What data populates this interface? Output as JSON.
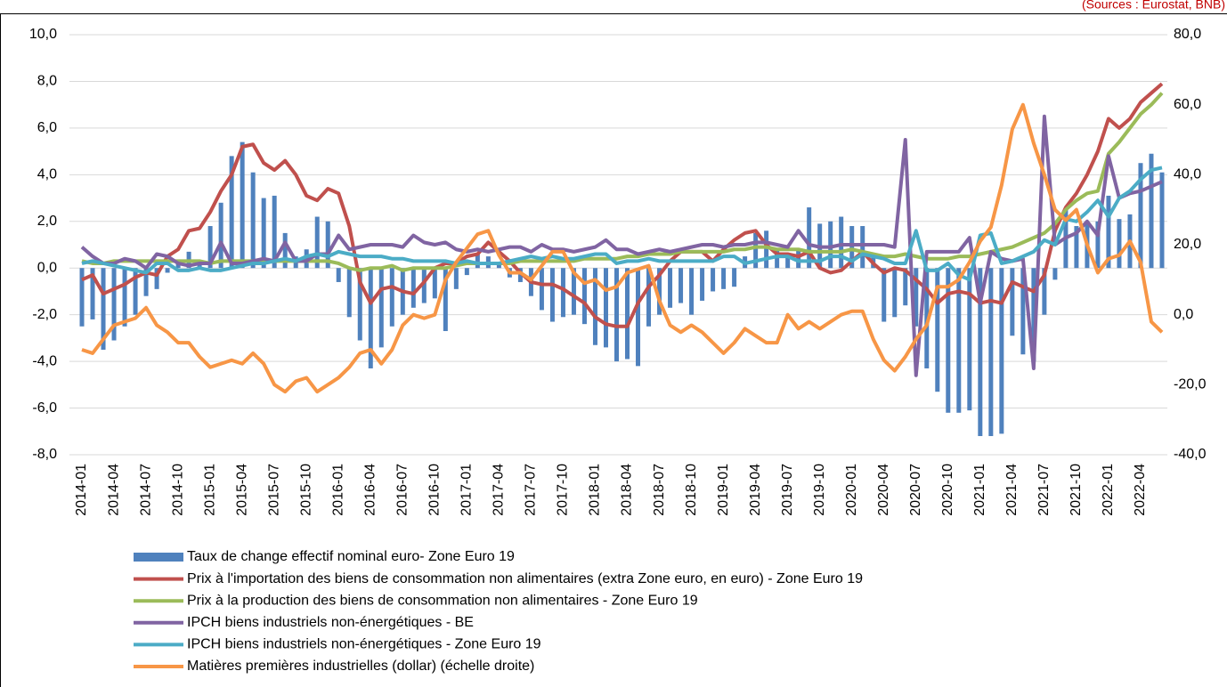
{
  "chart_data": {
    "type": "combo",
    "subtitle": "(Sources : Eurostat, BNB)",
    "categories": [
      "2014-01",
      null,
      null,
      "2014-04",
      null,
      null,
      "2014-07",
      null,
      null,
      "2014-10",
      null,
      null,
      "2015-01",
      null,
      null,
      "2015-04",
      null,
      null,
      "2015-07",
      null,
      null,
      "2015-10",
      null,
      null,
      "2016-01",
      null,
      null,
      "2016-04",
      null,
      null,
      "2016-07",
      null,
      null,
      "2016-10",
      null,
      null,
      "2017-01",
      null,
      null,
      "2017-04",
      null,
      null,
      "2017-07",
      null,
      null,
      "2017-10",
      null,
      null,
      "2018-01",
      null,
      null,
      "2018-04",
      null,
      null,
      "2018-07",
      null,
      null,
      "2018-10",
      null,
      null,
      "2019-01",
      null,
      null,
      "2019-04",
      null,
      null,
      "2019-07",
      null,
      null,
      "2019-10",
      null,
      null,
      "2020-01",
      null,
      null,
      "2020-04",
      null,
      null,
      "2020-07",
      null,
      null,
      "2020-10",
      null,
      null,
      "2021-01",
      null,
      null,
      "2021-04",
      null,
      null,
      "2021-07",
      null,
      null,
      "2021-10",
      null,
      null,
      "2022-01",
      null,
      null,
      "2022-04",
      null,
      null
    ],
    "ylim": [
      -8,
      10
    ],
    "yticks": [
      {
        "value": -8,
        "label": "-8,0"
      },
      {
        "value": -6,
        "label": "-6,0"
      },
      {
        "value": -4,
        "label": "-4,0"
      },
      {
        "value": -2,
        "label": "-2,0"
      },
      {
        "value": 0,
        "label": "0,0"
      },
      {
        "value": 2,
        "label": "2,0"
      },
      {
        "value": 4,
        "label": "4,0"
      },
      {
        "value": 6,
        "label": "6,0"
      },
      {
        "value": 8,
        "label": "8,0"
      },
      {
        "value": 10,
        "label": "10,0"
      }
    ],
    "y2lim": [
      -40,
      80
    ],
    "y2ticks": [
      {
        "value": -40,
        "label": "-40,0"
      },
      {
        "value": -20,
        "label": "-20,0"
      },
      {
        "value": 0,
        "label": "0,0"
      },
      {
        "value": 20,
        "label": "20,0"
      },
      {
        "value": 40,
        "label": "40,0"
      },
      {
        "value": 60,
        "label": "60,0"
      },
      {
        "value": 80,
        "label": "80,0"
      }
    ],
    "grid": true,
    "legend": "bottom",
    "series": [
      {
        "name": "Taux de change effectif nominal euro- Zone Euro 19",
        "type": "bar",
        "color": "#4f81bd",
        "values": [
          -2.5,
          -2.2,
          -3.5,
          -3.1,
          -2.5,
          -2.0,
          -1.2,
          -0.9,
          -0.2,
          0.2,
          0.7,
          0.3,
          1.8,
          2.8,
          4.8,
          5.4,
          4.1,
          3.0,
          3.1,
          1.5,
          0.5,
          0.8,
          2.2,
          2.0,
          -0.6,
          -2.1,
          -3.1,
          -4.3,
          -3.4,
          -2.5,
          -2.0,
          -1.7,
          -1.5,
          -1.3,
          -2.7,
          -0.9,
          -0.3,
          0.6,
          0.5,
          0.2,
          -0.4,
          -0.6,
          -1.2,
          -1.8,
          -2.3,
          -2.1,
          -2.0,
          -2.4,
          -3.3,
          -3.4,
          -4.0,
          -3.9,
          -4.2,
          -2.5,
          -2.0,
          -1.7,
          -1.5,
          -2.0,
          -1.4,
          -1.0,
          -0.9,
          -0.8,
          0.5,
          1.5,
          1.6,
          0.8,
          0.5,
          0.8,
          2.6,
          1.9,
          2.0,
          2.2,
          1.8,
          1.8,
          0.6,
          -2.3,
          -2.1,
          -1.6,
          -2.5,
          -4.3,
          -5.3,
          -6.2,
          -6.2,
          -6.1,
          -7.2,
          -7.2,
          -7.1,
          -2.9,
          -3.7,
          -4.0,
          -2.0,
          -0.5,
          2.5,
          1.8,
          2.0,
          2.0,
          3.1,
          2.1,
          2.3,
          4.5,
          4.9,
          4.1
        ]
      },
      {
        "name": "Prix à l'importation des biens de consommation non alimentaires (extra Zone euro, en euro) - Zone Euro 19",
        "type": "line",
        "color": "#c0504d",
        "values": [
          -0.5,
          -0.3,
          -1.1,
          -0.9,
          -0.7,
          -0.4,
          -0.2,
          -0.3,
          0.5,
          0.8,
          1.6,
          1.7,
          2.4,
          3.3,
          4.0,
          5.2,
          5.3,
          4.5,
          4.2,
          4.6,
          4.0,
          3.1,
          2.9,
          3.4,
          3.2,
          1.8,
          -0.6,
          -1.5,
          -0.9,
          -0.8,
          -1.0,
          -1.1,
          -0.6,
          0.0,
          0.2,
          0.2,
          0.5,
          0.6,
          1.1,
          0.7,
          0.3,
          -0.2,
          -0.6,
          -0.7,
          -0.7,
          -0.9,
          -1.2,
          -1.5,
          -2.1,
          -2.4,
          -2.5,
          -2.5,
          -1.5,
          -0.8,
          -0.3,
          0.3,
          0.7,
          0.7,
          0.7,
          0.3,
          0.8,
          1.2,
          1.5,
          1.6,
          1.0,
          0.6,
          0.6,
          0.5,
          0.7,
          0.0,
          -0.2,
          -0.1,
          0.3,
          0.7,
          0.2,
          -0.2,
          0.0,
          -0.1,
          -0.5,
          -0.9,
          -1.5,
          -1.1,
          -1.0,
          -1.1,
          -1.5,
          -1.4,
          -1.5,
          -0.6,
          -0.8,
          -1.0,
          -0.3,
          1.6,
          2.6,
          3.2,
          4.0,
          5.0,
          6.4,
          6.0,
          6.4,
          7.1,
          7.5,
          7.9
        ]
      },
      {
        "name": "Prix à la production des biens de consommation non alimentaires - Zone Euro 19",
        "type": "line",
        "color": "#9bbb59",
        "values": [
          0.3,
          0.2,
          0.2,
          0.3,
          0.3,
          0.3,
          0.3,
          0.3,
          0.3,
          0.3,
          0.3,
          0.3,
          0.2,
          0.3,
          0.3,
          0.3,
          0.3,
          0.3,
          0.3,
          0.3,
          0.3,
          0.3,
          0.3,
          0.3,
          0.2,
          0.0,
          -0.1,
          0.0,
          0.0,
          0.1,
          -0.1,
          0.0,
          0.0,
          0.0,
          0.0,
          0.1,
          0.2,
          0.2,
          0.2,
          0.2,
          0.2,
          0.3,
          0.3,
          0.3,
          0.3,
          0.3,
          0.3,
          0.4,
          0.4,
          0.4,
          0.4,
          0.5,
          0.5,
          0.6,
          0.6,
          0.6,
          0.7,
          0.7,
          0.7,
          0.7,
          0.7,
          0.8,
          0.8,
          0.9,
          0.9,
          0.8,
          0.8,
          0.8,
          0.7,
          0.7,
          0.7,
          0.7,
          0.8,
          0.7,
          0.6,
          0.5,
          0.5,
          0.6,
          0.5,
          0.4,
          0.4,
          0.4,
          0.5,
          0.5,
          0.6,
          0.7,
          0.8,
          0.9,
          1.1,
          1.3,
          1.5,
          1.9,
          2.5,
          2.9,
          3.2,
          3.3,
          4.9,
          5.4,
          6.0,
          6.6,
          7.0,
          7.5
        ]
      },
      {
        "name": "IPCH biens industriels non-énergétiques - BE",
        "type": "line",
        "color": "#8064a2",
        "values": [
          0.9,
          0.5,
          0.2,
          0.2,
          0.4,
          0.3,
          0.0,
          0.6,
          0.5,
          0.2,
          0.1,
          0.2,
          0.2,
          1.1,
          0.2,
          0.2,
          0.3,
          0.4,
          0.3,
          1.1,
          0.3,
          0.3,
          0.6,
          0.6,
          1.4,
          0.8,
          0.9,
          1.0,
          1.0,
          1.0,
          0.9,
          1.4,
          1.1,
          1.0,
          1.1,
          0.8,
          0.7,
          0.8,
          0.7,
          0.8,
          0.9,
          0.9,
          0.7,
          1.0,
          0.8,
          0.8,
          0.7,
          0.8,
          0.9,
          1.2,
          0.8,
          0.8,
          0.6,
          0.7,
          0.8,
          0.7,
          0.8,
          0.9,
          1.0,
          1.0,
          0.9,
          1.0,
          1.0,
          1.1,
          1.1,
          1.0,
          0.9,
          1.6,
          1.0,
          0.9,
          0.9,
          1.0,
          1.0,
          1.0,
          1.0,
          1.0,
          0.9,
          5.5,
          -4.6,
          0.7,
          0.7,
          0.7,
          0.7,
          1.3,
          -1.5,
          0.7,
          0.4,
          0.3,
          0.4,
          -4.3,
          6.5,
          1.0,
          1.3,
          1.5,
          2.0,
          1.4,
          4.8,
          3.0,
          3.2,
          3.3,
          3.5,
          3.7
        ]
      },
      {
        "name": "IPCH biens industriels non-énergétiques - Zone Euro 19",
        "type": "line",
        "color": "#4bacc6",
        "values": [
          0.2,
          0.3,
          0.2,
          0.1,
          0.0,
          -0.1,
          -0.2,
          0.2,
          0.2,
          -0.1,
          -0.1,
          0.0,
          -0.1,
          -0.1,
          0.0,
          0.1,
          0.2,
          0.2,
          0.3,
          0.4,
          0.3,
          0.5,
          0.6,
          0.5,
          0.7,
          0.6,
          0.5,
          0.5,
          0.5,
          0.4,
          0.4,
          0.3,
          0.3,
          0.3,
          0.3,
          0.2,
          0.3,
          0.2,
          0.2,
          0.2,
          0.3,
          0.4,
          0.5,
          0.4,
          0.5,
          0.4,
          0.4,
          0.5,
          0.6,
          0.6,
          0.2,
          0.3,
          0.3,
          0.4,
          0.3,
          0.3,
          0.3,
          0.3,
          0.3,
          0.3,
          0.5,
          0.5,
          0.2,
          0.3,
          0.4,
          0.5,
          0.5,
          0.3,
          0.3,
          0.3,
          0.5,
          0.5,
          0.3,
          0.6,
          0.5,
          0.4,
          0.2,
          0.2,
          1.6,
          -0.1,
          -0.1,
          0.2,
          -0.3,
          -0.5,
          1.4,
          1.5,
          0.2,
          0.3,
          0.5,
          0.7,
          1.2,
          1.0,
          2.1,
          2.0,
          2.4,
          2.9,
          2.2,
          3.0,
          3.3,
          3.8,
          4.2,
          4.3
        ]
      },
      {
        "name": "Matières premières industrielles (dollar) (échelle droite)",
        "type": "line",
        "axis": "y2",
        "color": "#f79646",
        "values": [
          -10,
          -11,
          -7,
          -3,
          -2,
          -1,
          2,
          -3,
          -5,
          -8,
          -8,
          -12,
          -15,
          -14,
          -13,
          -14,
          -11,
          -14,
          -20,
          -22,
          -19,
          -18,
          -22,
          -20,
          -18,
          -15,
          -11,
          -10,
          -14,
          -10,
          -3,
          0,
          -1,
          0,
          10,
          15,
          19,
          23,
          24,
          17,
          12,
          12,
          10,
          14,
          18,
          18,
          12,
          9,
          10,
          7,
          8,
          12,
          13,
          14,
          4,
          -3,
          -5,
          -3,
          -5,
          -8,
          -11,
          -8,
          -4,
          -6,
          -8,
          -8,
          0,
          -4,
          -2,
          -4,
          -2,
          0,
          1,
          1,
          -7,
          -13,
          -16,
          -12,
          -7,
          -3,
          8,
          8,
          10,
          15,
          21,
          25,
          37,
          53,
          60,
          49,
          40,
          30,
          27,
          30,
          20,
          12,
          16,
          17,
          21,
          15,
          -2,
          -5
        ]
      }
    ]
  }
}
